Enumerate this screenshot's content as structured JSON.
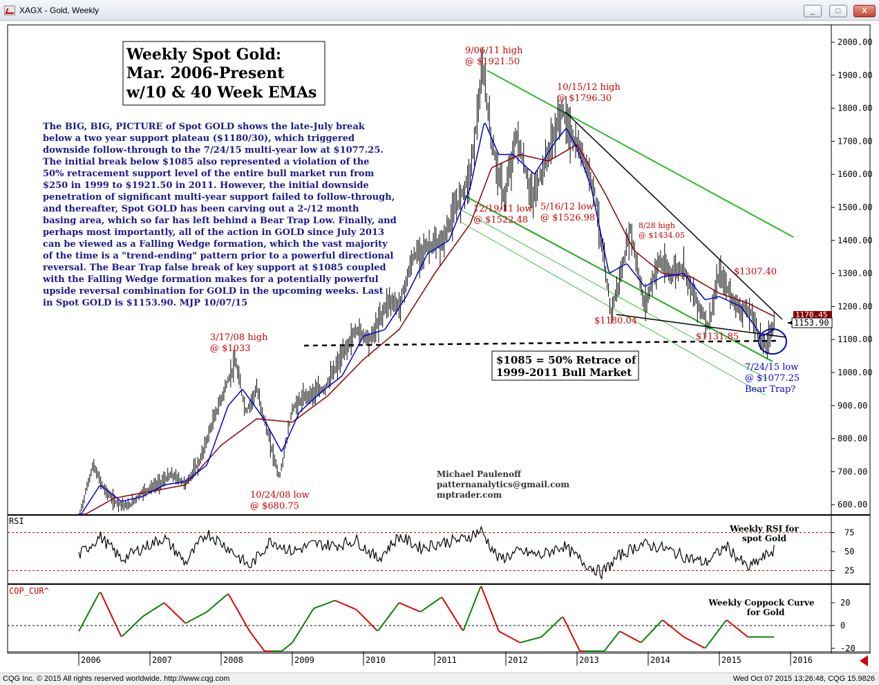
{
  "window": {
    "title": "XAGX - Gold, Weekly",
    "min": "_",
    "max": "□",
    "close": "X"
  },
  "statusbar": {
    "left": "CQG Inc. © 2015 All rights reserved worldwide. http://www.cqg.com",
    "right": "Wed Oct 07 2015 13:26:48, CQG 15.9826"
  },
  "chart_data": [
    {
      "type": "line",
      "title": "Weekly Spot Gold:",
      "title_lines": [
        "Weekly Spot Gold:",
        "Mar. 2006-Present",
        "w/10 & 40 Week EMAs"
      ],
      "x_ticks": [
        "2006",
        "2007",
        "2008",
        "2009",
        "2010",
        "2011",
        "2012",
        "2013",
        "2014",
        "2015",
        "2016"
      ],
      "y_ticks": [
        "2000.00",
        "1900.00",
        "1800.00",
        "1700.00",
        "1600.00",
        "1500.00",
        "1400.00",
        "1300.00",
        "1200.00",
        "1100.00",
        "1000.00",
        "900.00",
        "800.00",
        "700.00",
        "600.00"
      ],
      "ylim": [
        580,
        2040
      ],
      "last_price": "1153.90",
      "ema40_value": "1170.45",
      "series": [
        {
          "name": "",
          "kind": "price",
          "color": "#000000",
          "x": [
            2006.0,
            2006.2,
            2006.35,
            2006.5,
            2006.7,
            2006.9,
            2007.1,
            2007.3,
            2007.5,
            2007.7,
            2007.85,
            2008.0,
            2008.2,
            2008.35,
            2008.5,
            2008.65,
            2008.82,
            2009.0,
            2009.2,
            2009.45,
            2009.7,
            2009.9,
            2010.1,
            2010.35,
            2010.5,
            2010.7,
            2010.9,
            2011.1,
            2011.3,
            2011.5,
            2011.68,
            2011.8,
            2011.98,
            2012.15,
            2012.37,
            2012.5,
            2012.65,
            2012.79,
            2012.95,
            2013.1,
            2013.25,
            2013.35,
            2013.48,
            2013.62,
            2013.75,
            2013.95,
            2014.15,
            2014.3,
            2014.5,
            2014.65,
            2014.85,
            2015.0,
            2015.25,
            2015.45,
            2015.56,
            2015.65,
            2015.77
          ],
          "y": [
            560,
            720,
            650,
            610,
            595,
            640,
            660,
            690,
            665,
            730,
            830,
            920,
            1033,
            880,
            950,
            820,
            680.75,
            890,
            930,
            950,
            1050,
            1130,
            1100,
            1220,
            1200,
            1350,
            1380,
            1390,
            1500,
            1600,
            1921.5,
            1700,
            1522.48,
            1720,
            1526.98,
            1600,
            1700,
            1796.3,
            1700,
            1650,
            1550,
            1380,
            1180.04,
            1300,
            1434.05,
            1200,
            1340,
            1300,
            1320,
            1230,
            1140,
            1300,
            1200,
            1180,
            1110,
            1077.25,
            1153.9
          ]
        },
        {
          "name": "",
          "kind": "ema10",
          "color": "#0000cc",
          "x": [
            2006.0,
            2006.3,
            2006.6,
            2006.9,
            2007.2,
            2007.5,
            2007.8,
            2008.1,
            2008.3,
            2008.6,
            2008.85,
            2009.1,
            2009.4,
            2009.7,
            2010.0,
            2010.3,
            2010.6,
            2010.9,
            2011.2,
            2011.5,
            2011.7,
            2011.9,
            2012.1,
            2012.4,
            2012.7,
            2012.85,
            2013.0,
            2013.2,
            2013.45,
            2013.7,
            2013.95,
            2014.2,
            2014.5,
            2014.8,
            2015.0,
            2015.3,
            2015.6,
            2015.77
          ],
          "y": [
            560,
            660,
            610,
            625,
            660,
            670,
            720,
            900,
            950,
            860,
            760,
            880,
            940,
            990,
            1110,
            1130,
            1230,
            1360,
            1400,
            1560,
            1760,
            1660,
            1660,
            1600,
            1700,
            1740,
            1680,
            1560,
            1300,
            1330,
            1260,
            1290,
            1300,
            1220,
            1230,
            1200,
            1110,
            1130
          ]
        },
        {
          "name": "",
          "kind": "ema40",
          "color": "#8b0000",
          "x": [
            2006.0,
            2006.5,
            2007.0,
            2007.5,
            2008.0,
            2008.5,
            2009.0,
            2009.5,
            2010.0,
            2010.5,
            2011.0,
            2011.5,
            2011.8,
            2012.2,
            2012.6,
            2013.0,
            2013.4,
            2013.8,
            2014.2,
            2014.6,
            2015.0,
            2015.4,
            2015.77
          ],
          "y": [
            560,
            620,
            640,
            660,
            780,
            860,
            850,
            930,
            1040,
            1130,
            1300,
            1450,
            1620,
            1660,
            1640,
            1690,
            1540,
            1370,
            1300,
            1290,
            1240,
            1210,
            1170
          ]
        },
        {
          "name": "",
          "kind": "rsi",
          "color": "#000000",
          "x": [
            2006.0,
            2006.3,
            2006.6,
            2006.9,
            2007.2,
            2007.5,
            2007.8,
            2008.1,
            2008.4,
            2008.7,
            2009.0,
            2009.3,
            2009.6,
            2009.9,
            2010.2,
            2010.5,
            2010.8,
            2011.1,
            2011.4,
            2011.65,
            2011.9,
            2012.2,
            2012.5,
            2012.8,
            2013.1,
            2013.35,
            2013.6,
            2013.9,
            2014.2,
            2014.5,
            2014.8,
            2015.1,
            2015.4,
            2015.77
          ],
          "y": [
            45,
            70,
            40,
            55,
            68,
            35,
            75,
            55,
            30,
            65,
            50,
            60,
            58,
            65,
            40,
            70,
            55,
            62,
            66,
            78,
            40,
            50,
            45,
            58,
            35,
            22,
            45,
            60,
            55,
            44,
            35,
            57,
            28,
            52
          ]
        },
        {
          "name": "",
          "kind": "coppock",
          "color": "#008000",
          "x": [
            2006.0,
            2006.3,
            2006.6,
            2006.9,
            2007.2,
            2007.5,
            2007.8,
            2008.1,
            2008.4,
            2008.7,
            2009.0,
            2009.3,
            2009.6,
            2009.9,
            2010.2,
            2010.5,
            2010.8,
            2011.1,
            2011.4,
            2011.65,
            2011.9,
            2012.2,
            2012.5,
            2012.8,
            2013.1,
            2013.35,
            2013.6,
            2013.9,
            2014.2,
            2014.5,
            2014.8,
            2015.1,
            2015.4,
            2015.77
          ],
          "y": [
            -5,
            30,
            -10,
            8,
            20,
            2,
            12,
            28,
            -5,
            -30,
            -15,
            15,
            22,
            14,
            -5,
            20,
            12,
            25,
            -5,
            35,
            -5,
            -15,
            -10,
            8,
            -30,
            -25,
            -5,
            -15,
            5,
            -10,
            -20,
            5,
            -10,
            -10
          ]
        }
      ],
      "annotations": [
        {
          "id": "peak-2011",
          "lines": [
            "9/06/11 high",
            "@ $1921.50"
          ],
          "color": "#cc0000"
        },
        {
          "id": "high-2012",
          "lines": [
            "10/15/12 high",
            "@ $1796.30"
          ],
          "color": "#cc0000"
        },
        {
          "id": "low-2011",
          "lines": [
            "12/19/11 low",
            "@ $1522.48"
          ],
          "color": "#cc0000"
        },
        {
          "id": "low-2012",
          "lines": [
            "5/16/12 low",
            "@ $1526.98"
          ],
          "color": "#cc0000"
        },
        {
          "id": "high-2013",
          "lines": [
            "8/28 high",
            "@ $1434.05"
          ],
          "color": "#cc0000"
        },
        {
          "id": "level-1307",
          "lines": [
            "$1307.40"
          ],
          "color": "#cc0000"
        },
        {
          "id": "level-1180",
          "lines": [
            "$1180.04"
          ],
          "color": "#cc0000"
        },
        {
          "id": "level-1131",
          "lines": [
            "$1131.85"
          ],
          "color": "#cc0000"
        },
        {
          "id": "high-2008",
          "lines": [
            "3/17/08 high",
            "@ $1033"
          ],
          "color": "#cc0000"
        },
        {
          "id": "low-2008",
          "lines": [
            "10/24/08 low",
            "@ $680.75"
          ],
          "color": "#cc0000"
        },
        {
          "id": "low-2015",
          "lines": [
            "7/24/15 low",
            "@ $1077.25",
            "Bear Trap?"
          ],
          "color": "#0000cc"
        },
        {
          "id": "retrace",
          "lines": [
            "$1085 = 50% Retrace of",
            "1999-2011 Bull Market"
          ],
          "color": "#000000"
        },
        {
          "id": "author",
          "lines": [
            "Michael Paulenoff",
            "patternanalytics@gmail.com",
            "mptrader.com"
          ],
          "color": "#333333"
        }
      ],
      "commentary": [
        "The BIG, BIG, PICTURE of Spot GOLD shows the late-July break",
        "below  a two year support plateau ($1180/30), which triggered",
        "downside follow-through to the 7/24/15 multi-year low at $1077.25.",
        "The initial break below $1085 also represented a violation of the",
        "50% retracement support level of the entire bull market run from",
        "$250 in 1999 to $1921.50 in 2011. However, the initial downside",
        "penetration of significant multi-year support failed to follow-through,",
        "and thereafter, Spot GOLD has been carving out a 2-/12 month",
        "basing area, which so far has left behind a Bear Trap Low. Finally, and",
        "perhaps most importantly, all of the action in GOLD since July 2013",
        "can be viewed as a Falling Wedge formation, which the vast majority",
        "of the time is a \"trend-ending\" pattern prior to a powerful directional",
        "reversal. The Bear Trap false break of key support at $1085 coupled",
        "with the Falling Wedge formation makes for a potentially powerful",
        "upside reversal combination for GOLD in the upcoming weeks. Last",
        "in Spot GOLD is $1153.90.  MJP 10/07/15"
      ]
    },
    {
      "type": "line",
      "panel_label": "RSI",
      "note_lines": [
        "Weekly RSI for",
        "spot Gold"
      ],
      "y_ticks": [
        "75",
        "50",
        "25"
      ],
      "ylim": [
        0,
        100
      ],
      "levels": [
        75,
        25
      ]
    },
    {
      "type": "line",
      "panel_label": "COP_CUR^",
      "note_lines": [
        "Weekly Coppock Curve",
        "for Gold"
      ],
      "y_ticks": [
        "20",
        "0",
        "-20"
      ],
      "ylim": [
        -25,
        35
      ],
      "zero_line": 0
    }
  ]
}
